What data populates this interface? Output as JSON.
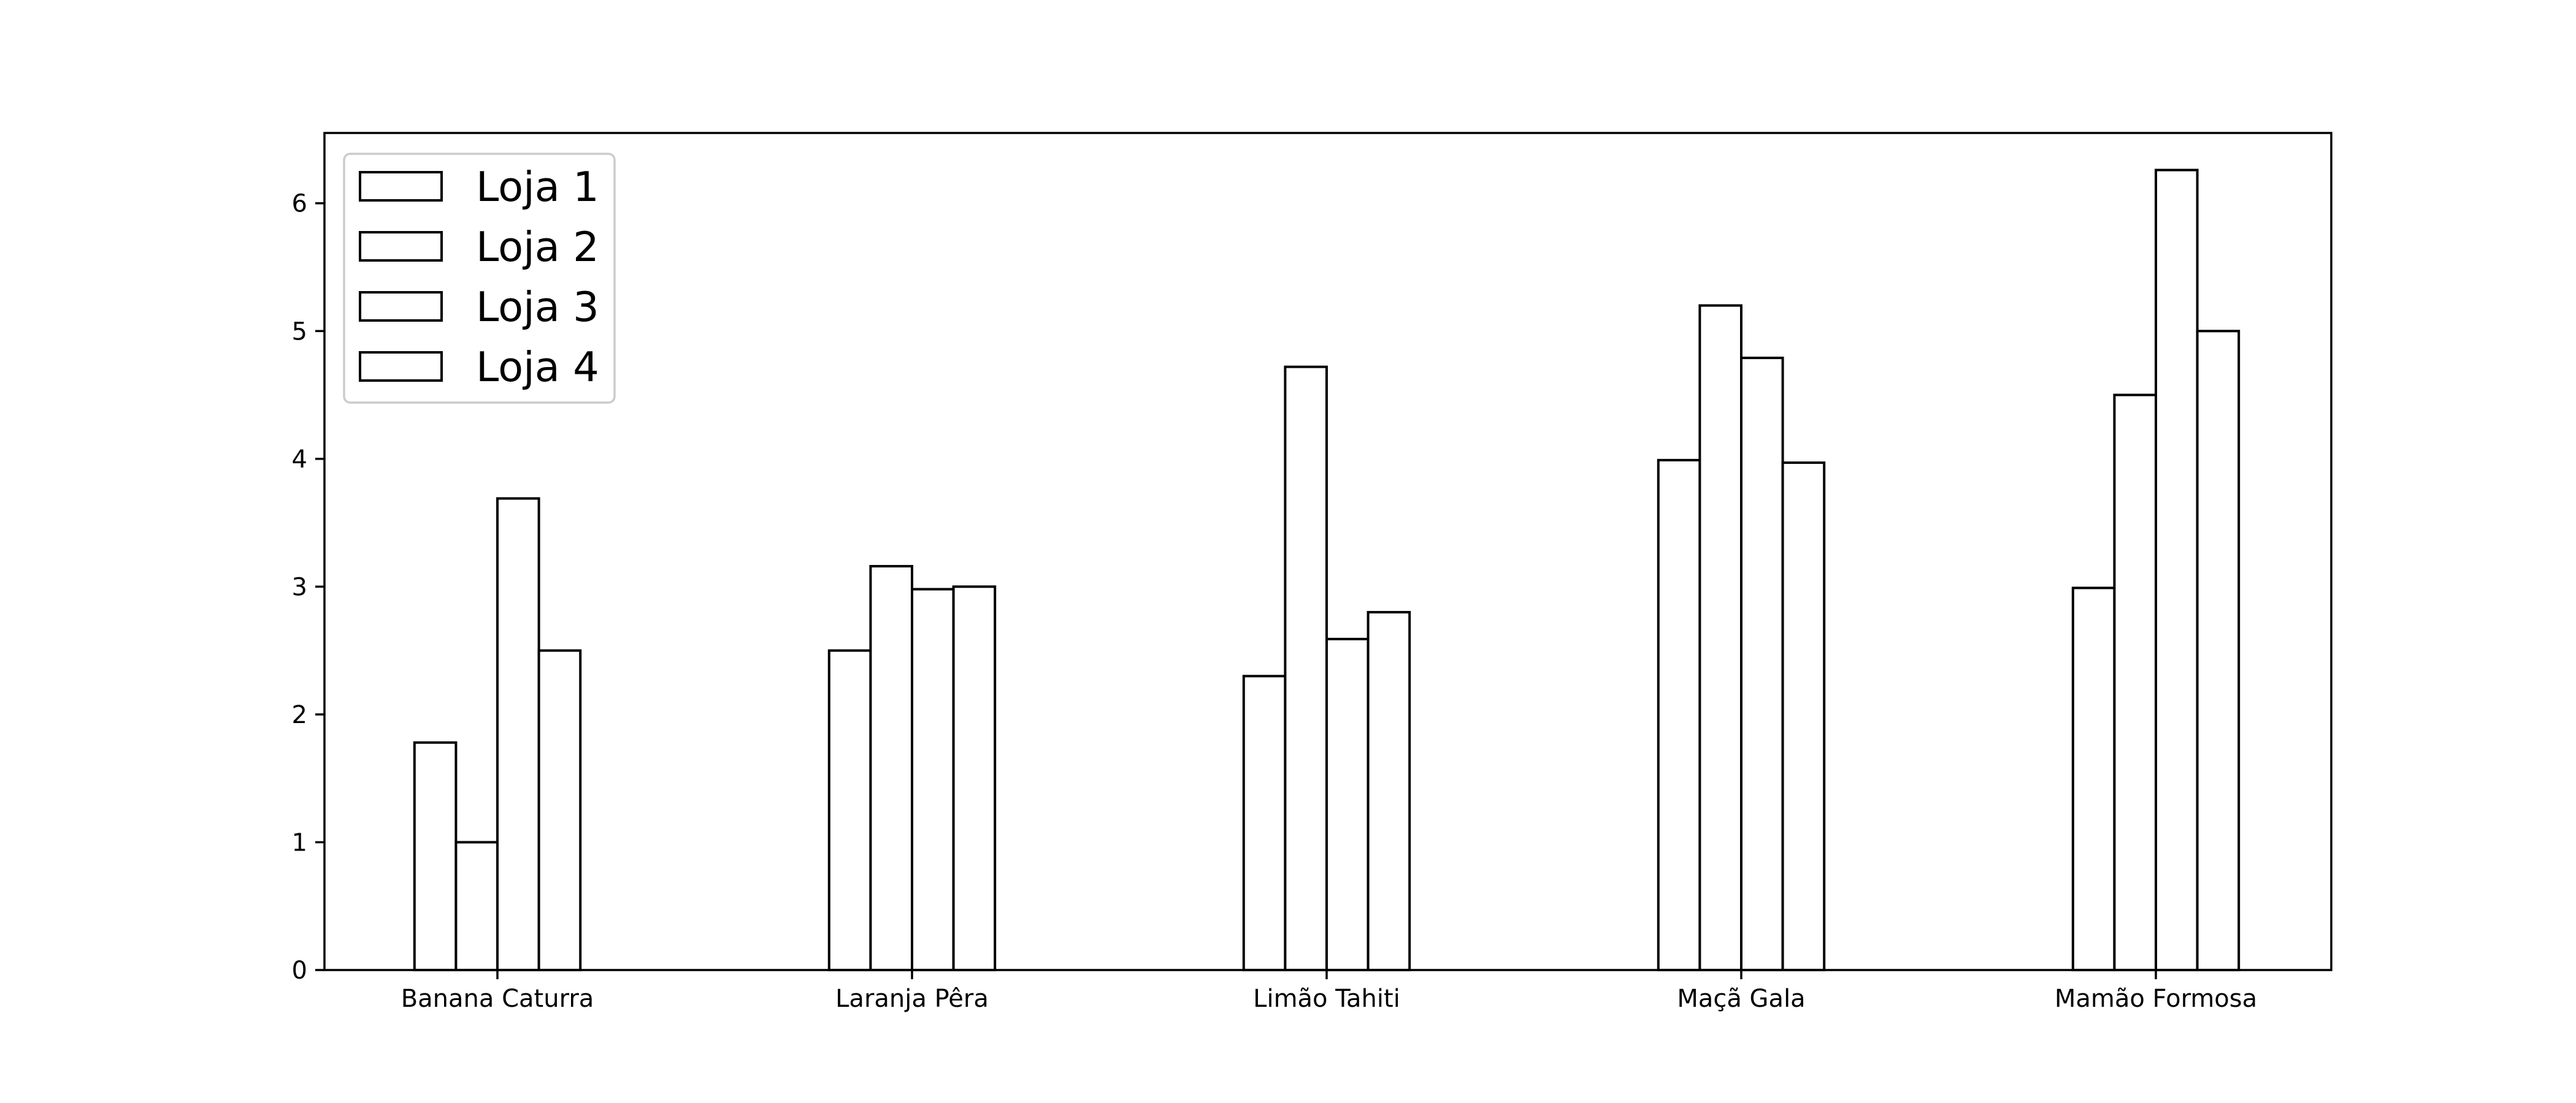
{
  "chart_data": {
    "type": "bar",
    "categories": [
      "Banana Caturra",
      "Laranja Pêra",
      "Limão Tahiti",
      "Maçã Gala",
      "Mamão Formosa"
    ],
    "series": [
      {
        "name": "Loja 1",
        "values": [
          1.78,
          2.5,
          2.3,
          3.99,
          2.99
        ]
      },
      {
        "name": "Loja 2",
        "values": [
          1.0,
          3.16,
          4.72,
          5.2,
          4.5
        ]
      },
      {
        "name": "Loja 3",
        "values": [
          3.69,
          2.98,
          2.59,
          4.79,
          6.26
        ]
      },
      {
        "name": "Loja 4",
        "values": [
          2.5,
          3.0,
          2.8,
          3.97,
          5.0
        ]
      }
    ],
    "title": "",
    "xlabel": "",
    "ylabel": "",
    "ylim": [
      0,
      6.55
    ],
    "yticks": [
      0,
      1,
      2,
      3,
      4,
      5,
      6
    ],
    "grid": false,
    "legend_position": "top-left",
    "colors": {
      "bar_fill": "#ffffff",
      "bar_edge": "#000000",
      "axis": "#000000",
      "legend_frame": "#cccccc"
    }
  }
}
